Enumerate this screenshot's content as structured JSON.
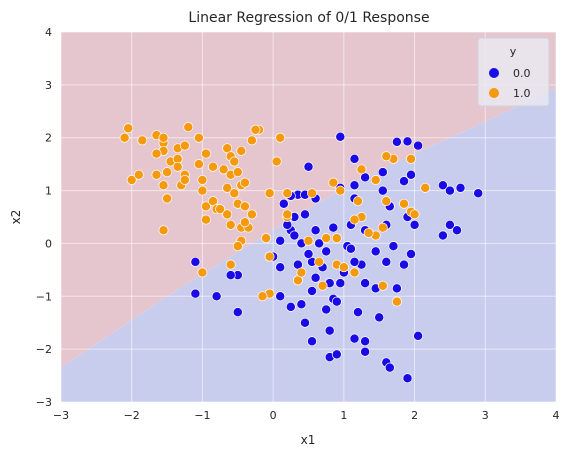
{
  "chart_data": {
    "type": "scatter",
    "title": "Linear Regression of 0/1 Response",
    "xlabel": "x1",
    "ylabel": "x2",
    "xlim": [
      -3,
      4
    ],
    "ylim": [
      -3,
      4
    ],
    "xticks": [
      "−3",
      "−2",
      "−1",
      "0",
      "1",
      "2",
      "3",
      "4"
    ],
    "yticks": [
      "−3",
      "−2",
      "−1",
      "0",
      "1",
      "2",
      "3",
      "4"
    ],
    "grid": true,
    "background": {
      "type": "decision-regions",
      "boundary": [
        [
          -3.0,
          -2.35
        ],
        [
          -1.5,
          -1.0
        ],
        [
          0.0,
          0.25
        ],
        [
          1.0,
          1.05
        ],
        [
          2.0,
          1.7
        ],
        [
          3.0,
          2.3
        ],
        [
          4.0,
          2.95
        ]
      ],
      "region_above": {
        "label": "1.0",
        "color": "#e6c6ce"
      },
      "region_below": {
        "label": "0.0",
        "color": "#c8cdee"
      }
    },
    "legend": {
      "title": "y",
      "position": "top-right",
      "entries": [
        {
          "label": "0.0",
          "color": "#1a0ae6"
        },
        {
          "label": "1.0",
          "color": "#f59a0e"
        }
      ]
    },
    "series": [
      {
        "name": "0.0",
        "color": "#1a0ae6",
        "points": [
          [
            0.95,
            2.02
          ],
          [
            1.15,
            1.6
          ],
          [
            1.75,
            1.92
          ],
          [
            1.9,
            1.93
          ],
          [
            2.05,
            1.85
          ],
          [
            0.5,
            1.45
          ],
          [
            1.95,
            1.3
          ],
          [
            1.55,
            1.35
          ],
          [
            1.3,
            1.25
          ],
          [
            1.85,
            1.18
          ],
          [
            0.95,
            1.05
          ],
          [
            1.15,
            1.1
          ],
          [
            0.35,
            0.92
          ],
          [
            0.45,
            0.92
          ],
          [
            0.25,
            0.9
          ],
          [
            0.15,
            0.75
          ],
          [
            0.6,
            0.85
          ],
          [
            1.15,
            0.85
          ],
          [
            1.55,
            1.0
          ],
          [
            1.65,
            0.7
          ],
          [
            2.4,
            1.1
          ],
          [
            2.5,
            1.0
          ],
          [
            2.65,
            1.05
          ],
          [
            2.9,
            0.95
          ],
          [
            2.5,
            0.35
          ],
          [
            2.6,
            0.25
          ],
          [
            2.4,
            0.15
          ],
          [
            2.0,
            0.35
          ],
          [
            1.9,
            0.5
          ],
          [
            1.6,
            0.35
          ],
          [
            0.3,
            0.5
          ],
          [
            0.45,
            0.55
          ],
          [
            0.25,
            0.25
          ],
          [
            0.1,
            0.05
          ],
          [
            0.3,
            0.15
          ],
          [
            0.6,
            0.25
          ],
          [
            0.85,
            0.3
          ],
          [
            1.1,
            0.35
          ],
          [
            1.3,
            0.25
          ],
          [
            0.2,
            0.35
          ],
          [
            0.4,
            0.0
          ],
          [
            0.65,
            0.0
          ],
          [
            0.75,
            -0.15
          ],
          [
            1.05,
            -0.05
          ],
          [
            1.1,
            -0.1
          ],
          [
            1.25,
            -0.4
          ],
          [
            1.45,
            -0.15
          ],
          [
            1.7,
            -0.05
          ],
          [
            1.6,
            -0.35
          ],
          [
            1.85,
            -0.4
          ],
          [
            1.95,
            -0.2
          ],
          [
            0.55,
            -0.35
          ],
          [
            0.7,
            -0.45
          ],
          [
            1.0,
            -0.55
          ],
          [
            1.15,
            -0.35
          ],
          [
            -0.05,
            -0.25
          ],
          [
            0.0,
            -0.25
          ],
          [
            0.1,
            -0.45
          ],
          [
            0.35,
            -0.4
          ],
          [
            0.5,
            -0.2
          ],
          [
            0.35,
            -0.7
          ],
          [
            0.6,
            -0.65
          ],
          [
            0.8,
            -0.75
          ],
          [
            0.95,
            -0.75
          ],
          [
            1.3,
            -0.75
          ],
          [
            1.45,
            -0.85
          ],
          [
            1.75,
            -0.85
          ],
          [
            -1.1,
            -0.35
          ],
          [
            -0.5,
            -0.6
          ],
          [
            -0.6,
            -0.6
          ],
          [
            -1.1,
            -0.95
          ],
          [
            -0.8,
            -1.0
          ],
          [
            -0.5,
            -1.3
          ],
          [
            0.1,
            -1.0
          ],
          [
            0.25,
            -1.2
          ],
          [
            0.4,
            -1.15
          ],
          [
            0.45,
            -1.5
          ],
          [
            0.55,
            -0.9
          ],
          [
            0.75,
            -1.25
          ],
          [
            0.8,
            -1.65
          ],
          [
            0.55,
            -1.85
          ],
          [
            0.8,
            -2.15
          ],
          [
            1.2,
            -1.3
          ],
          [
            1.15,
            -1.8
          ],
          [
            1.3,
            -1.85
          ],
          [
            1.3,
            -2.05
          ],
          [
            0.85,
            -1.05
          ],
          [
            0.9,
            -1.1
          ],
          [
            1.5,
            -1.4
          ],
          [
            1.6,
            -2.25
          ],
          [
            1.65,
            -2.35
          ],
          [
            1.9,
            -2.55
          ],
          [
            2.05,
            -1.75
          ],
          [
            1.75,
            -1.1
          ],
          [
            0.9,
            -2.1
          ]
        ]
      },
      {
        "name": "1.0",
        "color": "#f59a0e",
        "points": [
          [
            -2.1,
            2.0
          ],
          [
            -2.05,
            2.18
          ],
          [
            -1.85,
            1.95
          ],
          [
            -1.65,
            2.05
          ],
          [
            -1.55,
            1.9
          ],
          [
            -1.55,
            2.0
          ],
          [
            -1.2,
            2.2
          ],
          [
            -1.05,
            2.0
          ],
          [
            -1.55,
            1.75
          ],
          [
            -1.65,
            1.7
          ],
          [
            -1.45,
            1.55
          ],
          [
            -1.35,
            1.6
          ],
          [
            -1.35,
            1.8
          ],
          [
            -1.25,
            1.85
          ],
          [
            -0.95,
            1.7
          ],
          [
            -0.65,
            1.8
          ],
          [
            -0.6,
            1.65
          ],
          [
            -0.45,
            1.75
          ],
          [
            -0.3,
            1.95
          ],
          [
            -0.2,
            2.15
          ],
          [
            -0.25,
            2.15
          ],
          [
            0.1,
            2.0
          ],
          [
            -2.0,
            1.2
          ],
          [
            -1.9,
            1.3
          ],
          [
            -1.65,
            1.3
          ],
          [
            -1.5,
            1.35
          ],
          [
            -1.35,
            1.45
          ],
          [
            -1.25,
            1.3
          ],
          [
            -1.05,
            1.5
          ],
          [
            -1.0,
            1.2
          ],
          [
            -0.85,
            1.45
          ],
          [
            -0.7,
            1.4
          ],
          [
            -0.6,
            1.3
          ],
          [
            -0.5,
            1.35
          ],
          [
            -0.55,
            1.55
          ],
          [
            -0.65,
            1.05
          ],
          [
            -0.45,
            1.1
          ],
          [
            -0.4,
            1.15
          ],
          [
            -0.55,
            0.95
          ],
          [
            -1.3,
            1.1
          ],
          [
            -1.25,
            1.2
          ],
          [
            -1.55,
            1.1
          ],
          [
            -1.5,
            0.85
          ],
          [
            -1.0,
            1.0
          ],
          [
            -0.95,
            0.7
          ],
          [
            -0.85,
            0.8
          ],
          [
            -0.8,
            0.65
          ],
          [
            -0.75,
            0.65
          ],
          [
            -0.65,
            0.55
          ],
          [
            -0.5,
            0.75
          ],
          [
            -0.4,
            0.7
          ],
          [
            -0.3,
            0.55
          ],
          [
            -0.05,
            0.95
          ],
          [
            0.05,
            1.55
          ],
          [
            0.2,
            0.95
          ],
          [
            0.55,
            0.95
          ],
          [
            0.85,
            1.15
          ],
          [
            0.95,
            1.0
          ],
          [
            1.25,
            1.4
          ],
          [
            1.45,
            1.2
          ],
          [
            1.7,
            1.6
          ],
          [
            1.95,
            1.6
          ],
          [
            1.6,
            1.65
          ],
          [
            1.2,
            0.8
          ],
          [
            1.6,
            0.8
          ],
          [
            1.85,
            0.75
          ],
          [
            1.95,
            0.6
          ],
          [
            2.0,
            0.55
          ],
          [
            2.15,
            1.05
          ],
          [
            1.25,
            0.5
          ],
          [
            1.15,
            0.45
          ],
          [
            0.9,
            0.1
          ],
          [
            0.75,
            0.1
          ],
          [
            0.5,
            0.05
          ],
          [
            0.2,
            0.5
          ],
          [
            0.2,
            0.55
          ],
          [
            -0.95,
            0.45
          ],
          [
            -0.6,
            0.35
          ],
          [
            -0.45,
            0.3
          ],
          [
            -0.35,
            0.3
          ],
          [
            -0.4,
            0.4
          ],
          [
            -1.55,
            0.25
          ],
          [
            -0.45,
            0.05
          ],
          [
            -0.5,
            -0.05
          ],
          [
            -0.1,
            0.1
          ],
          [
            -0.05,
            -0.25
          ],
          [
            1.45,
            0.15
          ],
          [
            1.55,
            0.3
          ],
          [
            1.35,
            0.2
          ],
          [
            0.65,
            -0.35
          ],
          [
            0.9,
            -0.4
          ],
          [
            1.0,
            -0.45
          ],
          [
            1.15,
            -0.55
          ],
          [
            0.7,
            -0.8
          ],
          [
            0.35,
            -0.7
          ],
          [
            1.55,
            -0.8
          ],
          [
            1.75,
            -1.1
          ],
          [
            -0.05,
            -0.95
          ],
          [
            -0.15,
            -1.0
          ],
          [
            -1.0,
            -0.55
          ],
          [
            -0.6,
            -0.4
          ],
          [
            0.4,
            -0.55
          ]
        ]
      }
    ]
  }
}
